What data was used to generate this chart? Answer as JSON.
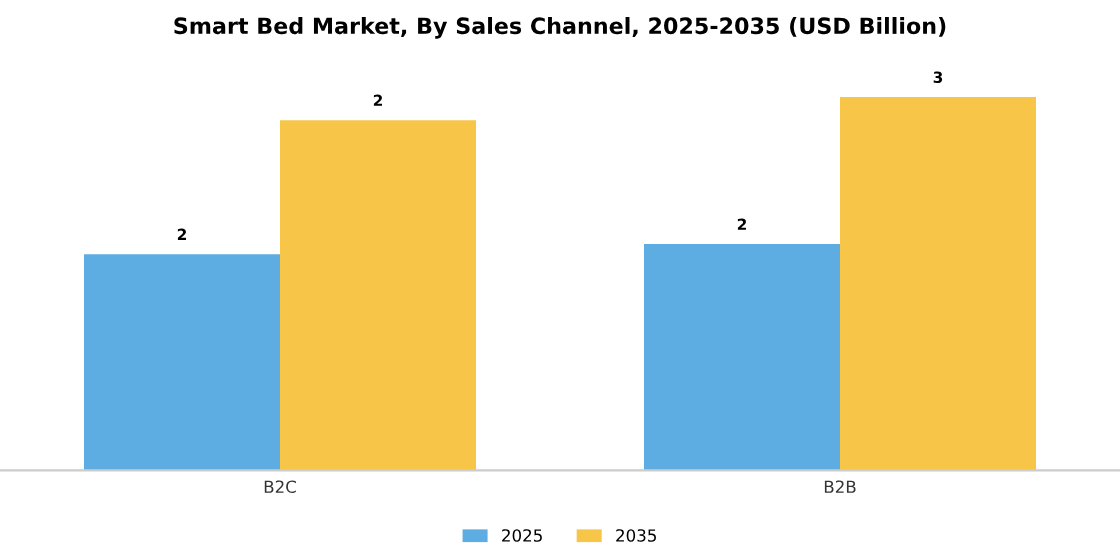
{
  "chart_data": {
    "type": "bar",
    "title": "Smart Bed Market, By Sales Channel, 2025-2035 (USD Billion)",
    "categories": [
      "B2C",
      "B2B"
    ],
    "series": [
      {
        "name": "2025",
        "color": "#5dade2",
        "values": [
          1.5,
          1.57
        ],
        "value_labels": [
          "2",
          "2"
        ]
      },
      {
        "name": "2035",
        "color": "#f7c548",
        "values": [
          2.43,
          2.59
        ],
        "value_labels": [
          "2",
          "3"
        ]
      }
    ],
    "legend": "bottom",
    "grid": false
  }
}
